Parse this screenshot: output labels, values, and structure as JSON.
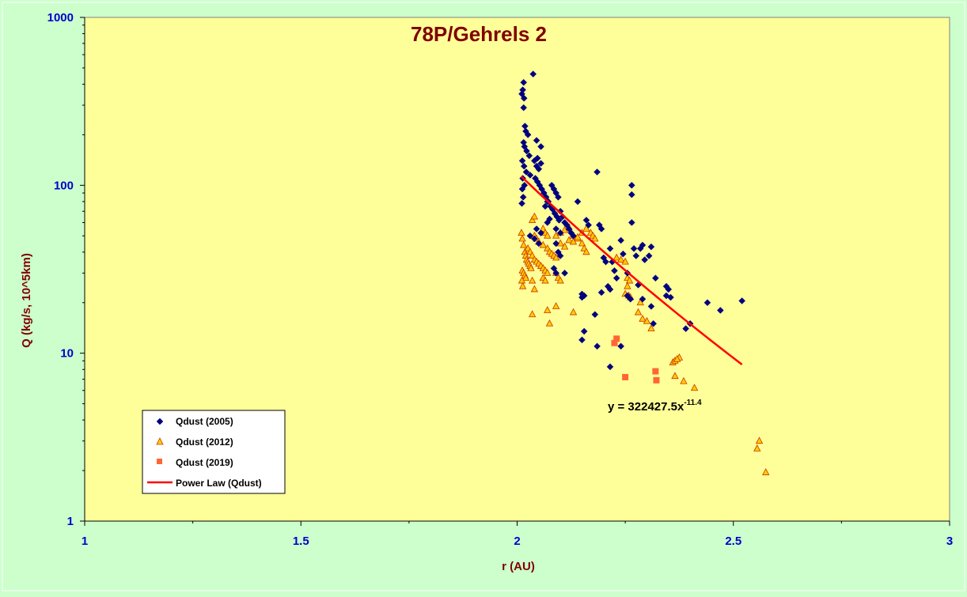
{
  "chart_data": {
    "type": "scatter",
    "title": "78P/Gehrels 2",
    "xlabel": "r (AU)",
    "ylabel": "Q (kg/s, 10^5km)",
    "xlim": [
      1,
      3
    ],
    "ylim": [
      1,
      1000
    ],
    "yscale": "log",
    "x_ticks": [
      "1",
      "1.5",
      "2",
      "2.5",
      "3"
    ],
    "y_ticks": [
      "1",
      "10",
      "100",
      "1000"
    ],
    "grid": false,
    "legend_position": "bottom-left",
    "colors": {
      "page_background": "#ccffcc",
      "plot_background": "#ffff99",
      "title": "#800000",
      "axis_title": "#800000",
      "tick_label": "#0000cc",
      "series_2005": "#000080",
      "series_2012_fill": "#ffcc00",
      "series_2012_edge": "#cc3300",
      "series_2019": "#ff6633",
      "power_law": "#ff0000"
    },
    "series": [
      {
        "name": "Qdust (2005)",
        "marker": "diamond",
        "points": [
          [
            2.015,
            410
          ],
          [
            2.037,
            460
          ],
          [
            2.013,
            370
          ],
          [
            2.011,
            350
          ],
          [
            2.016,
            330
          ],
          [
            2.015,
            290
          ],
          [
            2.018,
            225
          ],
          [
            2.02,
            210
          ],
          [
            2.025,
            200
          ],
          [
            2.045,
            185
          ],
          [
            2.055,
            170
          ],
          [
            2.015,
            180
          ],
          [
            2.017,
            170
          ],
          [
            2.022,
            160
          ],
          [
            2.028,
            150
          ],
          [
            2.012,
            140
          ],
          [
            2.016,
            130
          ],
          [
            2.021,
            120
          ],
          [
            2.03,
            115
          ],
          [
            2.04,
            140
          ],
          [
            2.045,
            130
          ],
          [
            2.05,
            125
          ],
          [
            2.055,
            135
          ],
          [
            2.047,
            145
          ],
          [
            2.013,
            110
          ],
          [
            2.017,
            100
          ],
          [
            2.012,
            95
          ],
          [
            2.014,
            85
          ],
          [
            2.011,
            78
          ],
          [
            2.042,
            110
          ],
          [
            2.047,
            105
          ],
          [
            2.052,
            100
          ],
          [
            2.057,
            95
          ],
          [
            2.062,
            90
          ],
          [
            2.067,
            85
          ],
          [
            2.072,
            80
          ],
          [
            2.077,
            75
          ],
          [
            2.082,
            72
          ],
          [
            2.087,
            68
          ],
          [
            2.092,
            65
          ],
          [
            2.097,
            62
          ],
          [
            2.08,
            100
          ],
          [
            2.085,
            95
          ],
          [
            2.09,
            90
          ],
          [
            2.095,
            85
          ],
          [
            2.1,
            70
          ],
          [
            2.105,
            65
          ],
          [
            2.11,
            60
          ],
          [
            2.115,
            58
          ],
          [
            2.12,
            55
          ],
          [
            2.125,
            52
          ],
          [
            2.13,
            50
          ],
          [
            2.14,
            80
          ],
          [
            2.16,
            62
          ],
          [
            2.165,
            58
          ],
          [
            2.185,
            120
          ],
          [
            2.19,
            58
          ],
          [
            2.195,
            55
          ],
          [
            2.2,
            37
          ],
          [
            2.205,
            35
          ],
          [
            2.215,
            42
          ],
          [
            2.22,
            35
          ],
          [
            2.225,
            31
          ],
          [
            2.23,
            28
          ],
          [
            2.24,
            47
          ],
          [
            2.245,
            39
          ],
          [
            2.255,
            30
          ],
          [
            2.265,
            100
          ],
          [
            2.265,
            88
          ],
          [
            2.265,
            60
          ],
          [
            2.27,
            42
          ],
          [
            2.275,
            38
          ],
          [
            2.285,
            42
          ],
          [
            2.29,
            44
          ],
          [
            2.295,
            36
          ],
          [
            2.305,
            38
          ],
          [
            2.31,
            43
          ],
          [
            2.32,
            28
          ],
          [
            2.24,
            11
          ],
          [
            2.215,
            8.3
          ],
          [
            2.185,
            11
          ],
          [
            2.15,
            12
          ],
          [
            2.155,
            13.5
          ],
          [
            2.155,
            22
          ],
          [
            2.15,
            22.5
          ],
          [
            2.15,
            21.5
          ],
          [
            2.18,
            17
          ],
          [
            2.195,
            23
          ],
          [
            2.21,
            25
          ],
          [
            2.215,
            24
          ],
          [
            2.255,
            22
          ],
          [
            2.262,
            21
          ],
          [
            2.28,
            25.5
          ],
          [
            2.29,
            21
          ],
          [
            2.31,
            19
          ],
          [
            2.315,
            15
          ],
          [
            2.345,
            25
          ],
          [
            2.35,
            24
          ],
          [
            2.345,
            22
          ],
          [
            2.355,
            21.5
          ],
          [
            2.39,
            14
          ],
          [
            2.4,
            15
          ],
          [
            2.44,
            20
          ],
          [
            2.47,
            18
          ],
          [
            2.52,
            20.5
          ],
          [
            2.07,
            60
          ],
          [
            2.075,
            63
          ],
          [
            2.09,
            55
          ],
          [
            2.1,
            52
          ],
          [
            2.09,
            45
          ],
          [
            2.095,
            40
          ],
          [
            2.1,
            38
          ],
          [
            2.085,
            32
          ],
          [
            2.09,
            30
          ],
          [
            2.11,
            30
          ],
          [
            2.05,
            45
          ],
          [
            2.04,
            48
          ],
          [
            2.055,
            52
          ],
          [
            2.045,
            55
          ],
          [
            2.03,
            50
          ],
          [
            2.065,
            75
          ],
          [
            2.07,
            80
          ]
        ]
      },
      {
        "name": "Qdust (2012)",
        "marker": "triangle",
        "points": [
          [
            2.01,
            52
          ],
          [
            2.012,
            48
          ],
          [
            2.015,
            44
          ],
          [
            2.018,
            40
          ],
          [
            2.02,
            38
          ],
          [
            2.022,
            36
          ],
          [
            2.025,
            35
          ],
          [
            2.027,
            34
          ],
          [
            2.03,
            33
          ],
          [
            2.032,
            32
          ],
          [
            2.012,
            31
          ],
          [
            2.015,
            30
          ],
          [
            2.018,
            29
          ],
          [
            2.02,
            28
          ],
          [
            2.011,
            27
          ],
          [
            2.013,
            25
          ],
          [
            2.025,
            42
          ],
          [
            2.03,
            40
          ],
          [
            2.035,
            38
          ],
          [
            2.04,
            36
          ],
          [
            2.045,
            35
          ],
          [
            2.05,
            34
          ],
          [
            2.055,
            33
          ],
          [
            2.06,
            32
          ],
          [
            2.065,
            31
          ],
          [
            2.07,
            30
          ],
          [
            2.04,
            50
          ],
          [
            2.045,
            48
          ],
          [
            2.05,
            46
          ],
          [
            2.06,
            44
          ],
          [
            2.07,
            42
          ],
          [
            2.075,
            40
          ],
          [
            2.08,
            39
          ],
          [
            2.085,
            38
          ],
          [
            2.09,
            37
          ],
          [
            2.035,
            62
          ],
          [
            2.04,
            65
          ],
          [
            2.06,
            55
          ],
          [
            2.065,
            52
          ],
          [
            2.07,
            50
          ],
          [
            2.09,
            50
          ],
          [
            2.1,
            52
          ],
          [
            2.11,
            54
          ],
          [
            2.12,
            56
          ],
          [
            2.13,
            50
          ],
          [
            2.14,
            48
          ],
          [
            2.15,
            52
          ],
          [
            2.16,
            55
          ],
          [
            2.17,
            52
          ],
          [
            2.175,
            50
          ],
          [
            2.18,
            48
          ],
          [
            2.15,
            45
          ],
          [
            2.155,
            42
          ],
          [
            2.16,
            40
          ],
          [
            2.1,
            45
          ],
          [
            2.11,
            43
          ],
          [
            2.12,
            47
          ],
          [
            2.13,
            46
          ],
          [
            2.14,
            49
          ],
          [
            2.09,
            30
          ],
          [
            2.095,
            28
          ],
          [
            2.1,
            27
          ],
          [
            2.06,
            28
          ],
          [
            2.065,
            27
          ],
          [
            2.035,
            27
          ],
          [
            2.04,
            24
          ],
          [
            2.035,
            17
          ],
          [
            2.07,
            18
          ],
          [
            2.075,
            15
          ],
          [
            2.09,
            19
          ],
          [
            2.13,
            17.5
          ],
          [
            2.23,
            37
          ],
          [
            2.24,
            36
          ],
          [
            2.25,
            35
          ],
          [
            2.255,
            28
          ],
          [
            2.26,
            27
          ],
          [
            2.255,
            25
          ],
          [
            2.25,
            22.5
          ],
          [
            2.258,
            22
          ],
          [
            2.262,
            21.5
          ],
          [
            2.28,
            17.5
          ],
          [
            2.29,
            16
          ],
          [
            2.3,
            15.5
          ],
          [
            2.31,
            14
          ],
          [
            2.285,
            20
          ],
          [
            2.36,
            8.8
          ],
          [
            2.365,
            9
          ],
          [
            2.375,
            9.4
          ],
          [
            2.37,
            9.2
          ],
          [
            2.385,
            6.8
          ],
          [
            2.365,
            7.3
          ],
          [
            2.41,
            6.2
          ],
          [
            2.555,
            2.7
          ],
          [
            2.56,
            3
          ],
          [
            2.575,
            1.95
          ]
        ]
      },
      {
        "name": "Qdust (2019)",
        "marker": "square",
        "points": [
          [
            2.225,
            11.5
          ],
          [
            2.23,
            12.2
          ],
          [
            2.25,
            7.2
          ],
          [
            2.32,
            7.8
          ],
          [
            2.322,
            6.9
          ]
        ]
      }
    ],
    "fit": {
      "name": "Power Law (Qdust)",
      "equation": "y = 322427.5x",
      "exponent": "-11.4",
      "coefficient": 322427.5,
      "power": -11.4,
      "x_range": [
        2.01,
        2.52
      ]
    }
  }
}
